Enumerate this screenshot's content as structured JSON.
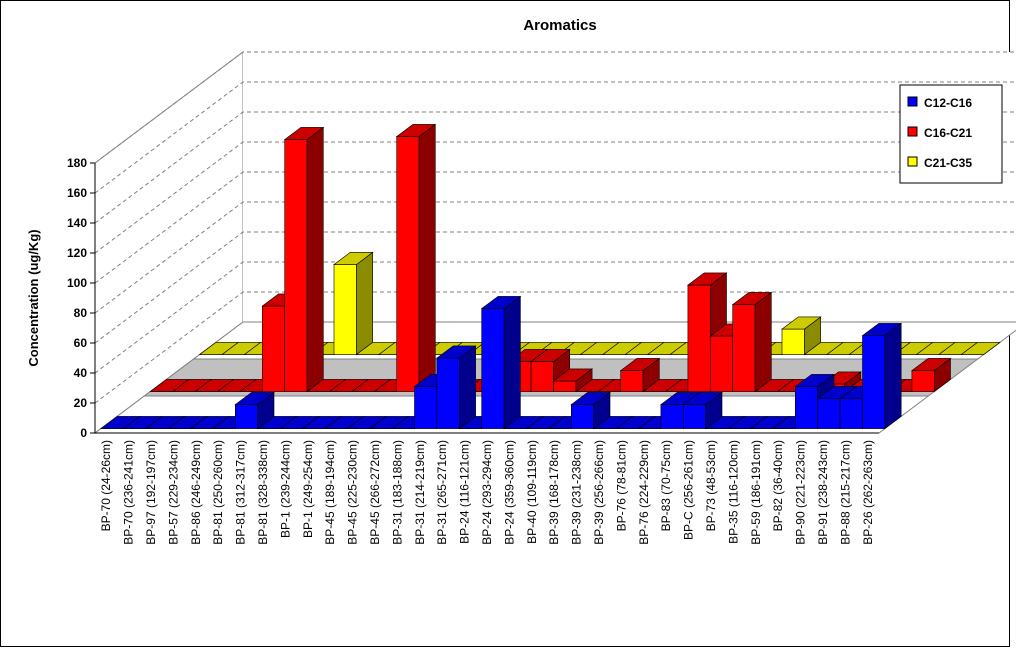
{
  "chart_data": {
    "type": "bar3d",
    "title": "Aromatics",
    "ylabel": "Concentration (ug/Kg)",
    "categories": [
      "BP-70 (24-26cm)",
      "BP-70 (236-241cm)",
      "BP-97 (192-197cm)",
      "BP-57 (229-234cm)",
      "BP-86 (246-249cm)",
      "BP-81 (250-260cm)",
      "BP-81 (312-317cm)",
      "BP-81 (328-338cm)",
      "BP-1 (239-244cm)",
      "BP-1 (249-254cm)",
      "BP-45 (189-194cm)",
      "BP-45 (225-230cm)",
      "BP-45 (266-272cm)",
      "BP-31 (183-188cm)",
      "BP-31 (214-219cm)",
      "BP-31 (265-271cm)",
      "BP-24 (116-121cm)",
      "BP-24 (293-294cm)",
      "BP-24 (359-360cm)",
      "BP-40 (109-119cm)",
      "BP-39 (168-178cm)",
      "BP-39 (231-238cm)",
      "BP-39 (256-266cm)",
      "BP-76 (78-81cm)",
      "BP-76 (224-229cm)",
      "BP-83 (70-75cm)",
      "BP-C (256-261cm)",
      "BP-73 (48-53cm)",
      "BP-35 (116-120cm)",
      "BP-59 (186-191cm)",
      "BP-82 (36-40cm)",
      "BP-90 (221-223cm)",
      "BP-91 (238-243cm)",
      "BP-88 (215-217cm)",
      "BP-26 (262-263cm)"
    ],
    "series": [
      {
        "name": "C12-C16",
        "color": "#0000ff",
        "values": [
          0,
          0,
          0,
          0,
          0,
          0,
          16,
          0,
          0,
          0,
          0,
          0,
          0,
          0,
          28,
          47,
          0,
          80,
          0,
          0,
          0,
          16,
          0,
          0,
          0,
          16,
          16,
          0,
          0,
          0,
          0,
          28,
          20,
          20,
          62
        ]
      },
      {
        "name": "C16-C21",
        "color": "#ff0000",
        "values": [
          0,
          0,
          0,
          0,
          0,
          57,
          168,
          0,
          0,
          0,
          0,
          170,
          0,
          0,
          0,
          0,
          20,
          20,
          7,
          0,
          0,
          14,
          0,
          0,
          71,
          37,
          58,
          0,
          0,
          0,
          5,
          0,
          0,
          0,
          14
        ]
      },
      {
        "name": "C21-C35",
        "color": "#ffff00",
        "values": [
          0,
          0,
          0,
          0,
          0,
          0,
          60,
          0,
          0,
          0,
          0,
          0,
          0,
          0,
          0,
          0,
          0,
          0,
          0,
          0,
          0,
          0,
          0,
          0,
          0,
          0,
          17,
          0,
          0,
          0,
          0,
          0,
          0,
          0,
          0
        ]
      }
    ],
    "ylim": [
      0,
      180
    ],
    "yticks": [
      0,
      20,
      40,
      60,
      80,
      100,
      120,
      140,
      160,
      180
    ],
    "grid": true,
    "legend": "upper right"
  }
}
